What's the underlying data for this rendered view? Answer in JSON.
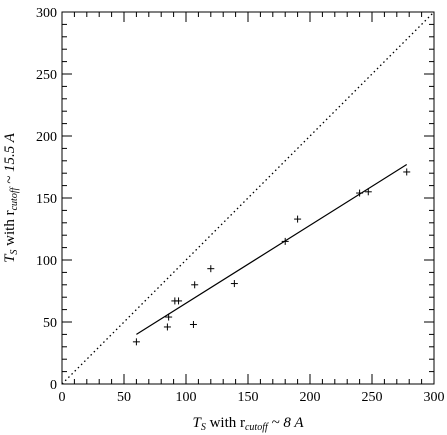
{
  "chart_data": {
    "type": "scatter",
    "x_ticks": [
      0,
      50,
      100,
      150,
      200,
      250,
      300
    ],
    "y_ticks": [
      0,
      50,
      100,
      150,
      200,
      250,
      300
    ],
    "x_minor_step": 10,
    "y_minor_step": 10,
    "xlim": [
      0,
      300
    ],
    "ylim": [
      0,
      300
    ],
    "xlabel": {
      "main": "T",
      "sub": "S",
      "mid": " with r",
      "sub2": "cutoff",
      "tail": " ~ 8 A"
    },
    "ylabel": {
      "main": "T",
      "sub": "S",
      "mid": " with r",
      "sub2": "cutoff",
      "tail": " ~ 15.5 A"
    },
    "points": [
      {
        "x": 60,
        "y": 34
      },
      {
        "x": 85,
        "y": 46
      },
      {
        "x": 86,
        "y": 54
      },
      {
        "x": 91,
        "y": 67
      },
      {
        "x": 94,
        "y": 67
      },
      {
        "x": 106,
        "y": 48
      },
      {
        "x": 107,
        "y": 80
      },
      {
        "x": 120,
        "y": 93
      },
      {
        "x": 139,
        "y": 81
      },
      {
        "x": 180,
        "y": 115
      },
      {
        "x": 190,
        "y": 133
      },
      {
        "x": 240,
        "y": 154
      },
      {
        "x": 247,
        "y": 155
      },
      {
        "x": 278,
        "y": 171
      }
    ],
    "fit_line": [
      {
        "x": 60,
        "y": 40
      },
      {
        "x": 278,
        "y": 177
      }
    ],
    "identity_line": [
      {
        "x": 0,
        "y": 0
      },
      {
        "x": 300,
        "y": 300
      }
    ]
  }
}
